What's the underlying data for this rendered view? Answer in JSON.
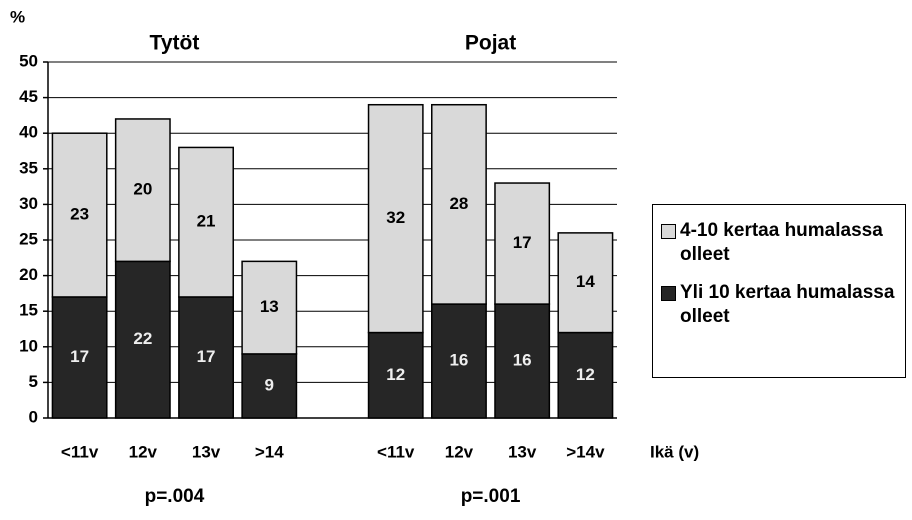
{
  "chart_data": {
    "type": "stacked_bar",
    "y_label": "%",
    "x_label": "Ikä (v)",
    "groups": [
      {
        "title": "Tytöt",
        "p": "p=.004"
      },
      {
        "title": "Pojat",
        "p": "p=.001"
      }
    ],
    "categories": [
      "<11v",
      "12v",
      "13v",
      ">14",
      null,
      "<11v",
      "12v",
      "13v",
      ">14v"
    ],
    "series": [
      {
        "name": "Yli 10 kertaa humalassa olleet",
        "color": "#262626",
        "values": [
          17,
          22,
          17,
          9,
          null,
          12,
          16,
          16,
          12
        ]
      },
      {
        "name": "4-10 kertaa humalassa olleet",
        "color": "#d9d9d9",
        "values": [
          23,
          20,
          21,
          13,
          null,
          32,
          28,
          17,
          14
        ]
      }
    ],
    "ylim": [
      0,
      50
    ],
    "yticks": [
      0,
      5,
      10,
      15,
      20,
      25,
      30,
      35,
      40,
      45,
      50
    ],
    "grid": true
  }
}
